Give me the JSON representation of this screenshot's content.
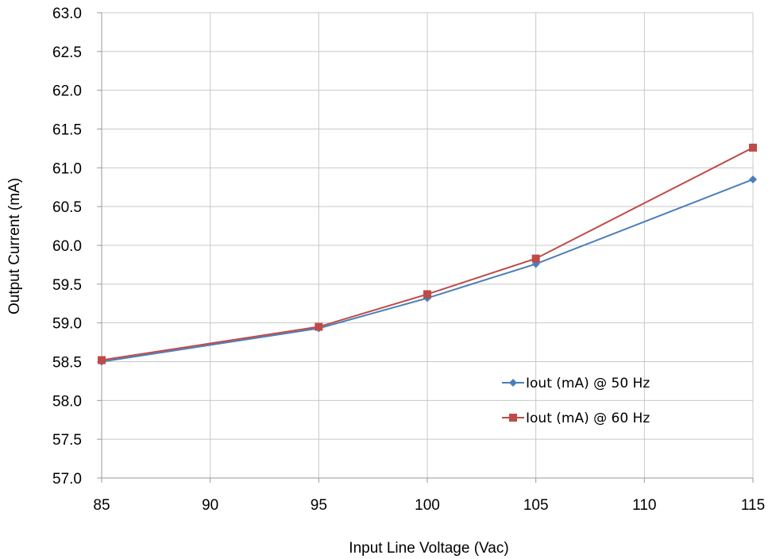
{
  "chart_data": {
    "type": "line",
    "title": "",
    "xlabel": "Input Line Voltage (Vac)",
    "ylabel": "Output Current (mA)",
    "xlim": [
      85,
      115
    ],
    "ylim": [
      57.0,
      63.0
    ],
    "x_ticks": [
      "85",
      "90",
      "95",
      "100",
      "105",
      "110",
      "115"
    ],
    "y_ticks": [
      "57.0",
      "57.5",
      "58.0",
      "58.5",
      "59.0",
      "59.5",
      "60.0",
      "60.5",
      "61.0",
      "61.5",
      "62.0",
      "62.5",
      "63.0"
    ],
    "grid": true,
    "legend_position": "lower-right",
    "series": [
      {
        "name": "Iout (mA) @ 50 Hz",
        "color": "#4a7ebb",
        "marker": "diamond",
        "x": [
          85,
          95,
          100,
          105,
          115
        ],
        "y": [
          58.5,
          58.93,
          59.32,
          59.76,
          60.85
        ]
      },
      {
        "name": "Iout (mA) @ 60 Hz",
        "color": "#be4b48",
        "marker": "square",
        "x": [
          85,
          95,
          100,
          105,
          115
        ],
        "y": [
          58.52,
          58.95,
          59.37,
          59.83,
          61.26
        ]
      }
    ]
  },
  "colors": {
    "grid": "#c8c8c8",
    "axis": "#9a9a9a"
  }
}
